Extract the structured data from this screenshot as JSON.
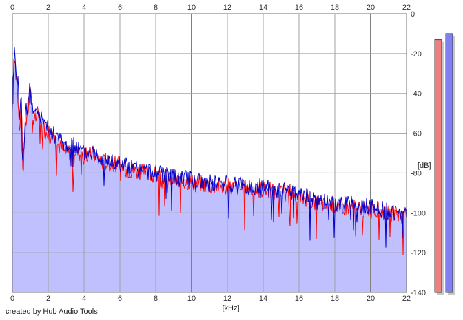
{
  "chart_data": {
    "type": "line",
    "title": "",
    "xlabel": "[kHz]",
    "ylabel": "[dB]",
    "xlim": [
      0,
      22
    ],
    "ylim": [
      -140,
      0
    ],
    "x_ticks": [
      0,
      2,
      4,
      6,
      8,
      10,
      12,
      14,
      16,
      18,
      20,
      22
    ],
    "y_ticks": [
      0,
      -20,
      -40,
      -60,
      -80,
      -100,
      -120,
      -140
    ],
    "grid": true,
    "x_tick_labels_top_and_bottom": true,
    "y_tick_labels_side": "right",
    "series": [
      {
        "color": "#ff0000",
        "x": [
          0.0,
          0.1,
          0.2,
          0.3,
          0.4,
          0.5,
          0.6,
          0.8,
          1.0,
          1.2,
          1.4,
          1.6,
          1.8,
          2.0,
          2.5,
          3.0,
          3.5,
          4.0,
          4.5,
          5.0,
          5.5,
          6.0,
          6.5,
          7.0,
          7.5,
          8.0,
          8.5,
          9.0,
          9.5,
          10.0,
          10.5,
          11.0,
          11.5,
          12.0,
          12.5,
          13.0,
          13.5,
          14.0,
          14.5,
          15.0,
          15.5,
          16.0,
          16.5,
          17.0,
          17.5,
          18.0,
          18.5,
          19.0,
          19.5,
          20.0,
          20.5,
          21.0,
          21.5,
          22.0
        ],
        "values": [
          -50,
          -22,
          -28,
          -38,
          -55,
          -45,
          -80,
          -50,
          -40,
          -55,
          -50,
          -55,
          -58,
          -60,
          -65,
          -70,
          -68,
          -72,
          -70,
          -74,
          -75,
          -76,
          -78,
          -79,
          -80,
          -81,
          -82,
          -83,
          -84,
          -84,
          -85,
          -86,
          -86,
          -87,
          -87,
          -88,
          -88,
          -88,
          -89,
          -90,
          -90,
          -92,
          -93,
          -95,
          -96,
          -96,
          -97,
          -97,
          -98,
          -98,
          -99,
          -100,
          -101,
          -101
        ]
      },
      {
        "color": "#0000cc",
        "x": [
          0.0,
          0.1,
          0.2,
          0.3,
          0.4,
          0.5,
          0.6,
          0.8,
          1.0,
          1.2,
          1.4,
          1.6,
          1.8,
          2.0,
          2.5,
          3.0,
          3.5,
          4.0,
          4.5,
          5.0,
          5.5,
          6.0,
          6.5,
          7.0,
          7.5,
          8.0,
          8.5,
          9.0,
          9.5,
          10.0,
          10.5,
          11.0,
          11.5,
          12.0,
          12.5,
          13.0,
          13.5,
          14.0,
          14.5,
          15.0,
          15.5,
          16.0,
          16.5,
          17.0,
          17.5,
          18.0,
          18.5,
          19.0,
          19.5,
          20.0,
          20.5,
          21.0,
          21.5,
          22.0
        ],
        "values": [
          -45,
          -20,
          -25,
          -35,
          -50,
          -42,
          -75,
          -45,
          -38,
          -52,
          -48,
          -52,
          -56,
          -58,
          -62,
          -66,
          -66,
          -70,
          -69,
          -72,
          -74,
          -75,
          -77,
          -78,
          -79,
          -80,
          -81,
          -82,
          -83,
          -83,
          -84,
          -85,
          -85,
          -86,
          -86,
          -87,
          -87,
          -87,
          -88,
          -89,
          -89,
          -91,
          -92,
          -94,
          -95,
          -95,
          -96,
          -96,
          -97,
          -97,
          -98,
          -99,
          -100,
          -100
        ]
      }
    ],
    "level_meters": [
      {
        "color": "#f08080",
        "level_db": -13
      },
      {
        "color": "#8080f0",
        "level_db": -10
      }
    ]
  },
  "footer": {
    "credit": "created by Hub Audio Tools"
  },
  "colors": {
    "fill": "#c0c0ff",
    "grid": "#a0a0a0",
    "red": "#ff0000",
    "blue": "#0000cc"
  }
}
